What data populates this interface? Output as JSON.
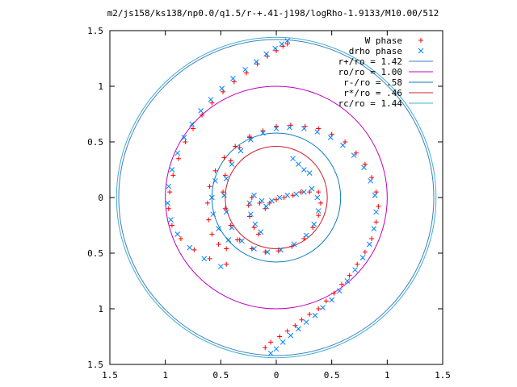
{
  "chart_data": {
    "type": "scatter",
    "title": "m2/js158/ks138/np0.0/q1.5/r-+.41-j198/logRho-1.9133/M10.00/512",
    "xlabel": "",
    "ylabel": "",
    "xlim": [
      -1.5,
      1.5
    ],
    "ylim": [
      -1.5,
      1.5
    ],
    "xticks": [
      {
        "value": -1.5,
        "label": "1.5"
      },
      {
        "value": -1.0,
        "label": "1"
      },
      {
        "value": -0.5,
        "label": "0.5"
      },
      {
        "value": 0.0,
        "label": "0"
      },
      {
        "value": 0.5,
        "label": "0.5"
      },
      {
        "value": 1.0,
        "label": "1"
      },
      {
        "value": 1.5,
        "label": "1.5"
      }
    ],
    "yticks": [
      {
        "value": 1.5,
        "label": "1.5"
      },
      {
        "value": 1.0,
        "label": "1"
      },
      {
        "value": 0.5,
        "label": "0.5"
      },
      {
        "value": 0.0,
        "label": "0"
      },
      {
        "value": -0.5,
        "label": "0.5"
      },
      {
        "value": -1.0,
        "label": "1"
      },
      {
        "value": -1.5,
        "label": "1.5"
      }
    ],
    "grid": false,
    "legend_position": "top-right",
    "series": [
      {
        "name": "W phase",
        "marker": "plus",
        "color": "#ff0000",
        "points": [
          [
            -0.1,
            -1.35
          ],
          [
            -0.05,
            -1.3
          ],
          [
            0.03,
            -1.25
          ],
          [
            0.1,
            -1.2
          ],
          [
            0.17,
            -1.15
          ],
          [
            0.23,
            -1.1
          ],
          [
            0.3,
            -1.05
          ],
          [
            0.38,
            -1.0
          ],
          [
            0.45,
            -0.93
          ],
          [
            0.52,
            -0.86
          ],
          [
            0.59,
            -0.78
          ],
          [
            0.66,
            -0.7
          ],
          [
            0.73,
            -0.6
          ],
          [
            0.8,
            -0.49
          ],
          [
            0.86,
            -0.37
          ],
          [
            0.9,
            -0.22
          ],
          [
            0.92,
            -0.08
          ],
          [
            0.9,
            0.05
          ],
          [
            0.86,
            0.18
          ],
          [
            0.8,
            0.3
          ],
          [
            0.72,
            0.4
          ],
          [
            0.62,
            0.5
          ],
          [
            0.5,
            0.57
          ],
          [
            0.38,
            0.62
          ],
          [
            0.26,
            0.64
          ],
          [
            0.13,
            0.65
          ],
          [
            0.0,
            0.64
          ],
          [
            -0.12,
            0.6
          ],
          [
            -0.24,
            0.55
          ],
          [
            -0.33,
            0.45
          ],
          [
            -0.41,
            0.33
          ],
          [
            -0.46,
            0.2
          ],
          [
            -0.48,
            0.05
          ],
          [
            -0.46,
            -0.1
          ],
          [
            -0.41,
            -0.25
          ],
          [
            -0.33,
            -0.38
          ],
          [
            -0.22,
            -0.46
          ],
          [
            -0.1,
            -0.49
          ],
          [
            0.02,
            -0.48
          ],
          [
            0.14,
            -0.44
          ],
          [
            0.25,
            -0.37
          ],
          [
            0.33,
            -0.27
          ],
          [
            0.38,
            -0.16
          ],
          [
            0.4,
            -0.05
          ],
          [
            0.38,
            0.05
          ],
          [
            0.3,
            0.05
          ],
          [
            0.22,
            0.05
          ],
          [
            0.15,
            0.02
          ],
          [
            0.07,
            0.0
          ],
          [
            0.0,
            -0.02
          ],
          [
            -0.06,
            -0.05
          ],
          [
            -0.1,
            -0.1
          ],
          [
            -0.15,
            -0.05
          ],
          [
            -0.22,
            0.0
          ],
          [
            -0.25,
            -0.07
          ],
          [
            -0.24,
            -0.17
          ],
          [
            -0.2,
            -0.27
          ],
          [
            -0.16,
            -0.33
          ],
          [
            -0.35,
            -0.38
          ],
          [
            -0.45,
            -0.46
          ],
          [
            -0.52,
            -0.42
          ],
          [
            -0.58,
            -0.33
          ],
          [
            -0.61,
            -0.2
          ],
          [
            -0.62,
            -0.05
          ],
          [
            -0.6,
            0.1
          ],
          [
            -0.55,
            0.24
          ],
          [
            -0.47,
            0.36
          ],
          [
            -0.37,
            0.46
          ],
          [
            -0.24,
            0.54
          ],
          [
            -0.45,
            -0.6
          ],
          [
            -0.6,
            -0.55
          ],
          [
            -0.74,
            -0.47
          ],
          [
            -0.86,
            -0.37
          ],
          [
            -0.94,
            -0.25
          ],
          [
            -0.97,
            -0.1
          ],
          [
            -0.96,
            0.05
          ],
          [
            -0.93,
            0.2
          ],
          [
            -0.88,
            0.35
          ],
          [
            -0.82,
            0.5
          ],
          [
            -0.75,
            0.62
          ],
          [
            -0.67,
            0.74
          ],
          [
            -0.58,
            0.85
          ],
          [
            -0.48,
            0.95
          ],
          [
            -0.38,
            1.04
          ],
          [
            -0.27,
            1.12
          ],
          [
            -0.17,
            1.2
          ],
          [
            -0.08,
            1.27
          ],
          [
            0.0,
            1.32
          ],
          [
            0.06,
            1.36
          ],
          [
            0.1,
            1.38
          ]
        ]
      },
      {
        "name": "drho phase",
        "marker": "cross",
        "color": "#0080ff",
        "points": [
          [
            -0.05,
            -1.4
          ],
          [
            0.0,
            -1.36
          ],
          [
            0.06,
            -1.3
          ],
          [
            0.13,
            -1.24
          ],
          [
            0.2,
            -1.18
          ],
          [
            0.27,
            -1.12
          ],
          [
            0.35,
            -1.06
          ],
          [
            0.42,
            -0.99
          ],
          [
            0.5,
            -0.92
          ],
          [
            0.57,
            -0.84
          ],
          [
            0.64,
            -0.75
          ],
          [
            0.71,
            -0.65
          ],
          [
            0.78,
            -0.54
          ],
          [
            0.84,
            -0.42
          ],
          [
            0.88,
            -0.28
          ],
          [
            0.9,
            -0.13
          ],
          [
            0.89,
            0.02
          ],
          [
            0.85,
            0.15
          ],
          [
            0.79,
            0.27
          ],
          [
            0.7,
            0.38
          ],
          [
            0.6,
            0.47
          ],
          [
            0.49,
            0.54
          ],
          [
            0.37,
            0.59
          ],
          [
            0.25,
            0.62
          ],
          [
            0.12,
            0.63
          ],
          [
            0.0,
            0.62
          ],
          [
            -0.12,
            0.58
          ],
          [
            -0.23,
            0.52
          ],
          [
            -0.32,
            0.42
          ],
          [
            -0.4,
            0.3
          ],
          [
            -0.45,
            0.17
          ],
          [
            -0.47,
            0.02
          ],
          [
            -0.45,
            -0.13
          ],
          [
            -0.4,
            -0.27
          ],
          [
            -0.31,
            -0.39
          ],
          [
            -0.2,
            -0.46
          ],
          [
            -0.08,
            -0.49
          ],
          [
            0.04,
            -0.47
          ],
          [
            0.16,
            -0.42
          ],
          [
            0.27,
            -0.34
          ],
          [
            0.34,
            -0.24
          ],
          [
            0.38,
            -0.12
          ],
          [
            0.37,
            0.0
          ],
          [
            0.32,
            0.08
          ],
          [
            0.25,
            0.05
          ],
          [
            0.18,
            0.03
          ],
          [
            0.1,
            0.02
          ],
          [
            0.03,
            0.0
          ],
          [
            -0.04,
            -0.03
          ],
          [
            -0.09,
            -0.08
          ],
          [
            -0.13,
            -0.03
          ],
          [
            -0.2,
            0.02
          ],
          [
            -0.24,
            -0.05
          ],
          [
            -0.23,
            -0.15
          ],
          [
            -0.19,
            -0.24
          ],
          [
            -0.14,
            -0.31
          ],
          [
            0.15,
            0.35
          ],
          [
            0.2,
            0.3
          ],
          [
            0.25,
            0.25
          ],
          [
            0.3,
            0.22
          ],
          [
            -0.5,
            -0.62
          ],
          [
            -0.65,
            -0.55
          ],
          [
            -0.78,
            -0.45
          ],
          [
            -0.89,
            -0.33
          ],
          [
            -0.95,
            -0.2
          ],
          [
            -0.98,
            -0.05
          ],
          [
            -0.97,
            0.1
          ],
          [
            -0.94,
            0.25
          ],
          [
            -0.89,
            0.4
          ],
          [
            -0.83,
            0.54
          ],
          [
            -0.76,
            0.66
          ],
          [
            -0.68,
            0.78
          ],
          [
            -0.59,
            0.88
          ],
          [
            -0.49,
            0.98
          ],
          [
            -0.39,
            1.07
          ],
          [
            -0.28,
            1.15
          ],
          [
            -0.18,
            1.22
          ],
          [
            -0.09,
            1.29
          ],
          [
            -0.01,
            1.34
          ],
          [
            0.05,
            1.38
          ],
          [
            0.1,
            1.41
          ],
          [
            -0.55,
            0.15
          ],
          [
            -0.58,
            0.0
          ],
          [
            -0.57,
            -0.15
          ],
          [
            -0.52,
            -0.28
          ],
          [
            -0.43,
            -0.38
          ]
        ]
      }
    ],
    "circles": [
      {
        "name": "r+/ro = 1.42",
        "radius": 1.42,
        "color": "#3f7fbf"
      },
      {
        "name": "ro/ro = 1.00",
        "radius": 1.0,
        "color": "#c000c0"
      },
      {
        "name": "r-/ro = .58",
        "radius": 0.58,
        "color": "#0f7fbf"
      },
      {
        "name": "r*/ro = .46",
        "radius": 0.46,
        "color": "#d0202f"
      },
      {
        "name": "rc/ro = 1.44",
        "radius": 1.44,
        "color": "#40b0d0"
      }
    ]
  }
}
